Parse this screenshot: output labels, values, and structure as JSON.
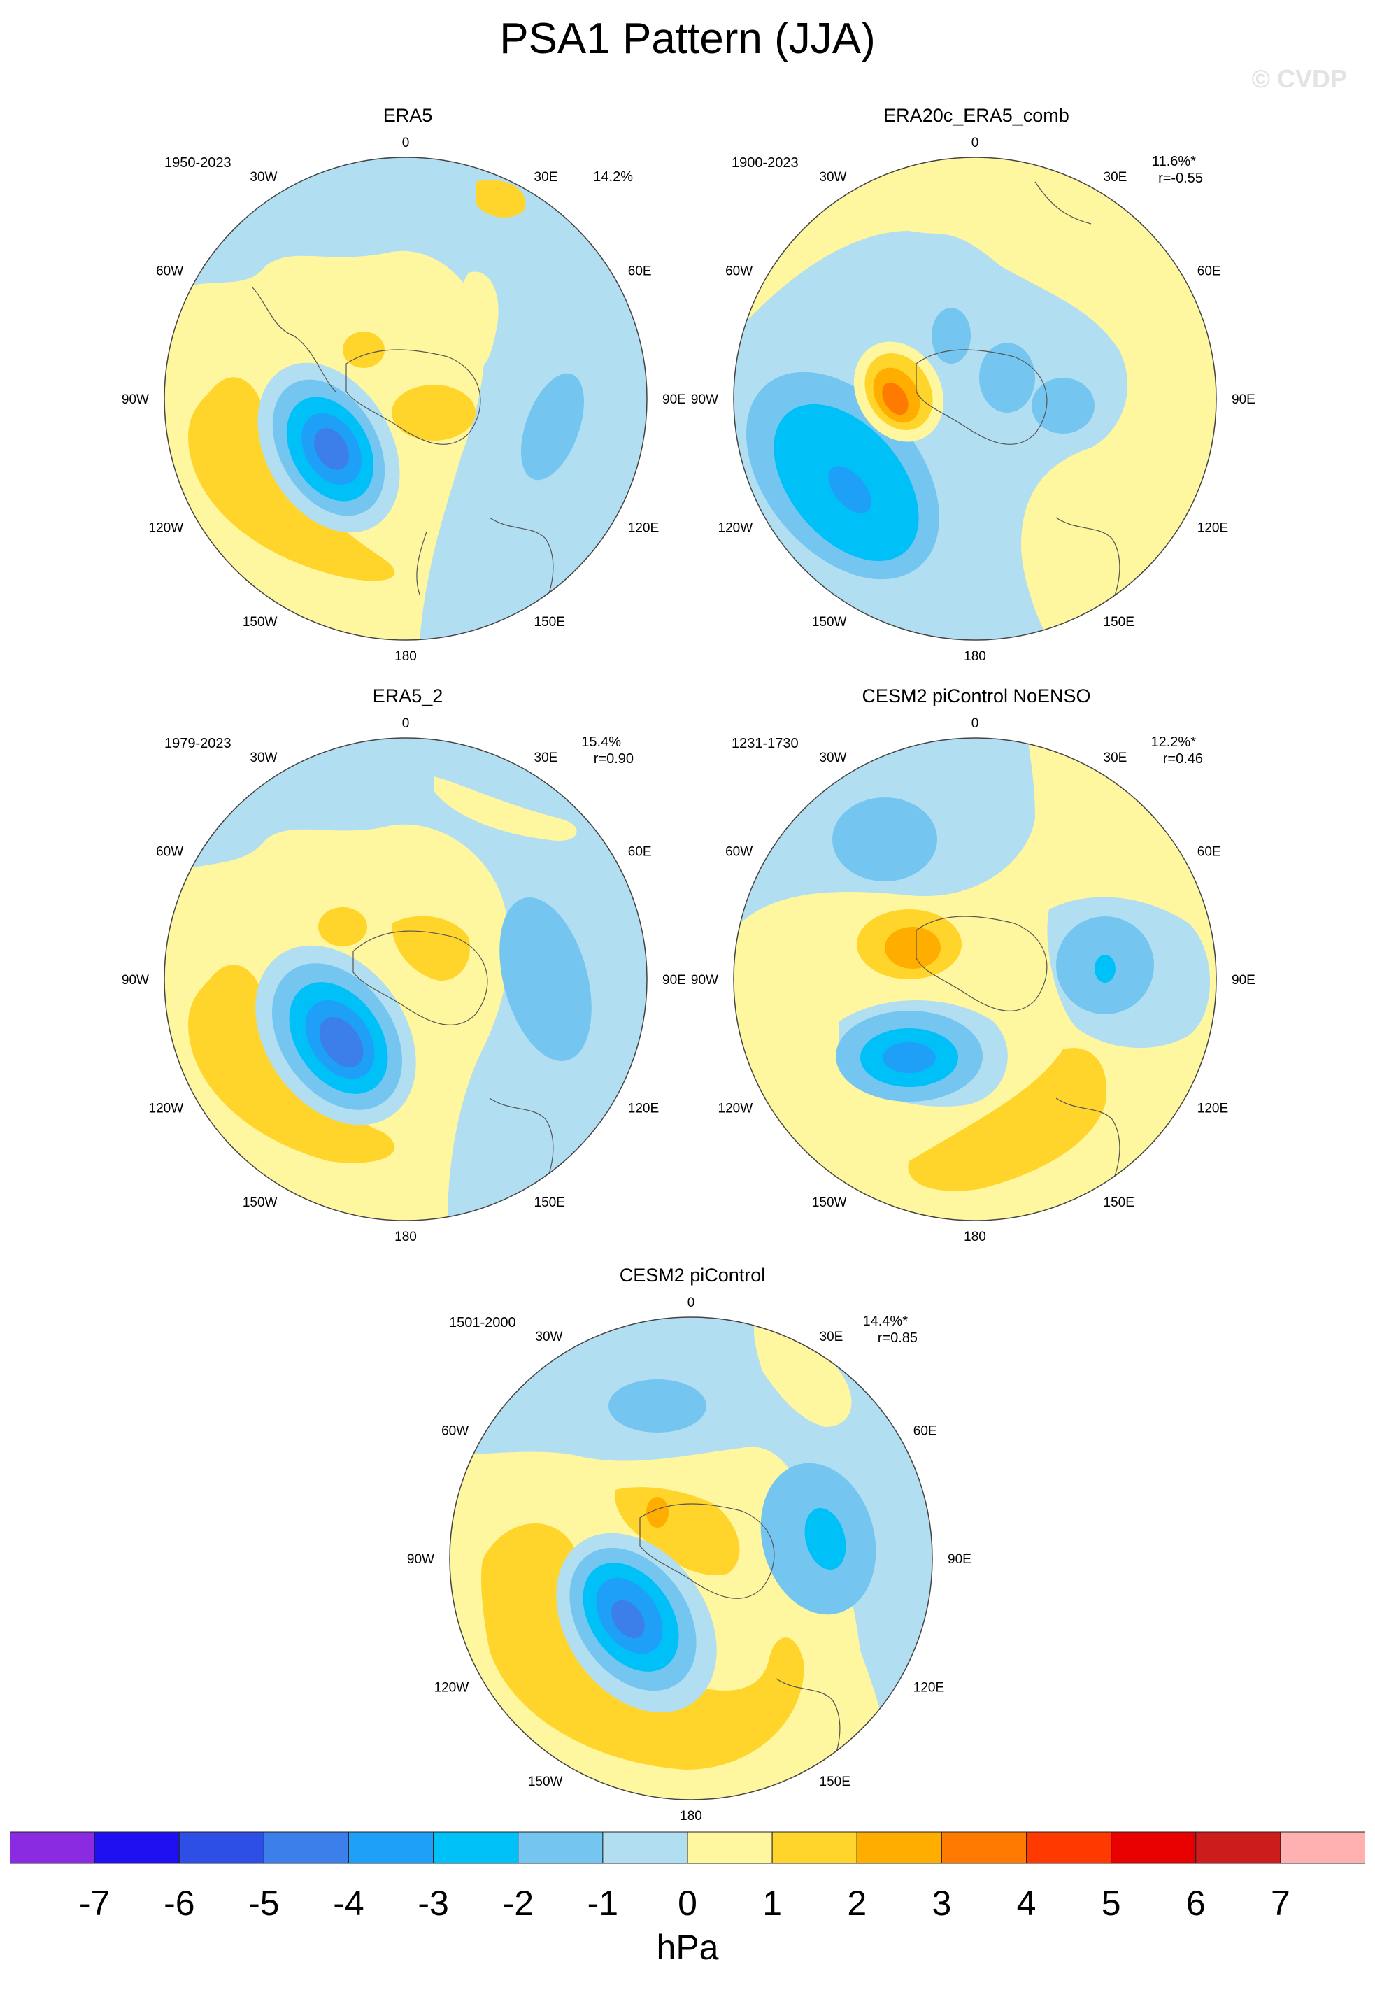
{
  "title": "PSA1 Pattern (JJA)",
  "watermark": "© CVDP",
  "lon_labels": [
    "0",
    "30E",
    "60E",
    "90E",
    "120E",
    "150E",
    "180",
    "150W",
    "120W",
    "90W",
    "60W",
    "30W"
  ],
  "panels": [
    {
      "title": "ERA5",
      "period": "1950-2023",
      "pct": "14.2%",
      "corr": ""
    },
    {
      "title": "ERA20c_ERA5_comb",
      "period": "1900-2023",
      "pct": "11.6%*",
      "corr": "r=-0.55"
    },
    {
      "title": "ERA5_2",
      "period": "1979-2023",
      "pct": "15.4%",
      "corr": "r=0.90"
    },
    {
      "title": "CESM2 piControl NoENSO",
      "period": "1231-1730",
      "pct": "12.2%*",
      "corr": "r=0.46"
    },
    {
      "title": "CESM2 piControl",
      "period": "1501-2000",
      "pct": "14.4%*",
      "corr": "r=0.85"
    }
  ],
  "colorbar": {
    "colors": [
      "#8a2be2",
      "#1e10f0",
      "#2e4fe6",
      "#3c7eea",
      "#1ea0f8",
      "#00c0f8",
      "#74c6f0",
      "#b2def2",
      "#fff6a0",
      "#ffd52c",
      "#ffae00",
      "#ff7a00",
      "#ff3a00",
      "#e80000",
      "#cc1c1c",
      "#ffb0b0"
    ],
    "ticks": [
      "-7",
      "-6",
      "-5",
      "-4",
      "-3",
      "-2",
      "-1",
      "0",
      "1",
      "2",
      "3",
      "4",
      "5",
      "6",
      "7"
    ],
    "units": "hPa"
  }
}
